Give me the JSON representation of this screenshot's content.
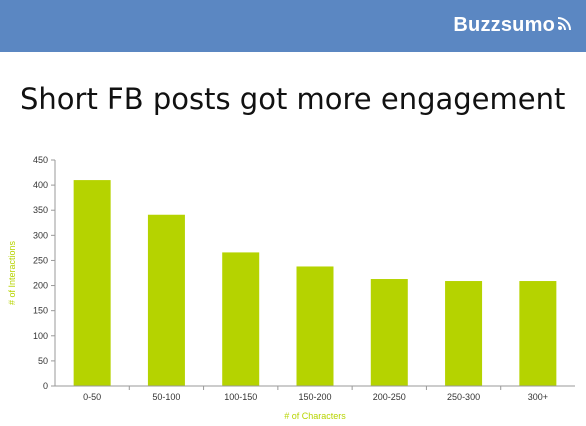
{
  "header": {
    "brand": "Buzzsumo",
    "brand_icon": "broadcast-signal-icon",
    "banner_color": "#5b87c2"
  },
  "slide": {
    "title": "Short FB posts got more engagement"
  },
  "chart_data": {
    "type": "bar",
    "categories": [
      "0-50",
      "50-100",
      "100-150",
      "150-200",
      "200-250",
      "250-300",
      "300+"
    ],
    "values": [
      410,
      341,
      266,
      238,
      213,
      209,
      209
    ],
    "xlabel": "# of Characters",
    "ylabel": "# of Interactions",
    "ylim": [
      0,
      450
    ],
    "yticks": [
      0,
      50,
      100,
      150,
      200,
      250,
      300,
      350,
      400,
      450
    ],
    "bar_color": "#b5d300",
    "grid": false
  }
}
